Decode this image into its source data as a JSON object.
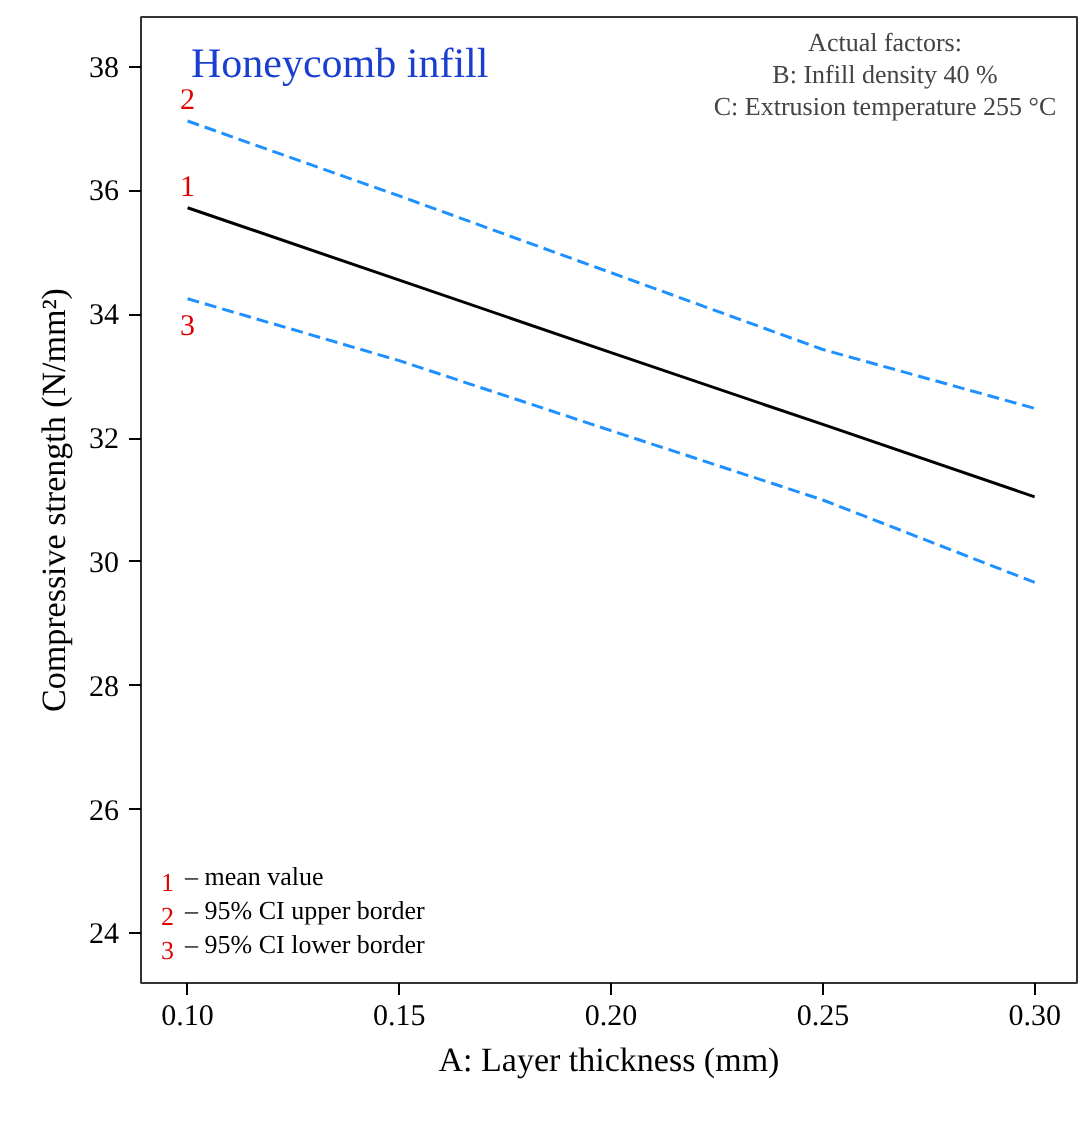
{
  "chart_data": {
    "type": "line",
    "title": "Honeycomb infill",
    "xlabel": "A: Layer thickness (mm)",
    "ylabel": "Compressive strength (N/mm²)",
    "x": [
      0.1,
      0.15,
      0.2,
      0.25,
      0.3
    ],
    "series": [
      {
        "color": "#000000",
        "line_style": "solid",
        "values": [
          35.72,
          34.55,
          33.38,
          32.22,
          31.05
        ]
      },
      {
        "color": "#1e90ff",
        "line_style": "dashed",
        "values": [
          37.12,
          35.91,
          34.67,
          33.43,
          32.48
        ]
      },
      {
        "color": "#1e90ff",
        "line_style": "dashed",
        "values": [
          34.25,
          33.25,
          32.12,
          31.0,
          29.67
        ]
      }
    ],
    "xlim": [
      0.089,
      0.31
    ],
    "ylim": [
      23.2,
      38.8
    ],
    "xticks": [
      {
        "value": 0.1,
        "label": "0.10"
      },
      {
        "value": 0.15,
        "label": "0.15"
      },
      {
        "value": 0.2,
        "label": "0.20"
      },
      {
        "value": 0.25,
        "label": "0.25"
      },
      {
        "value": 0.3,
        "label": "0.30"
      }
    ],
    "yticks": [
      24,
      26,
      28,
      30,
      32,
      34,
      36,
      38
    ],
    "grid": false,
    "marker": "none",
    "annotations": [
      "1",
      "2",
      "3",
      "Actual factors:",
      "B: Infill density 40 %",
      "C: Extrusion temperature 255 °C",
      "1 – mean value",
      "2 – 95% CI upper border",
      "3 – 95% CI lower border"
    ]
  }
}
